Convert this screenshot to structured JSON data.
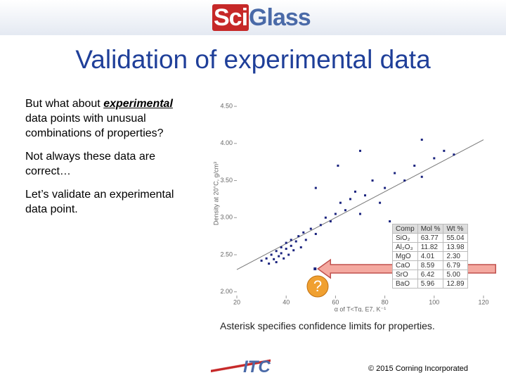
{
  "header": {
    "logo_prefix": "Sci",
    "logo_suffix": "Glass"
  },
  "title": "Validation of experimental data",
  "bullets": [
    {
      "parts": [
        "But what about ",
        "experimental",
        " data points with unusual combinations of properties?"
      ]
    },
    {
      "parts": [
        "Not always these data are correct…"
      ]
    },
    {
      "parts": [
        "Let’s validate an experimental data point."
      ]
    }
  ],
  "chart_data": {
    "type": "scatter",
    "xlabel": "α of T<Tg, E7, K⁻¹",
    "ylabel": "Density at 20°C, g/cm³",
    "xlim": [
      20,
      120
    ],
    "ylim": [
      1.95,
      4.7
    ],
    "xticks": [
      20,
      40,
      60,
      80,
      100,
      120
    ],
    "yticks": [
      {
        "value": 2,
        "label": "2.00"
      },
      {
        "value": 2.5,
        "label": "2.50"
      },
      {
        "value": 3,
        "label": "3.00"
      },
      {
        "value": 3.5,
        "label": "3.50"
      },
      {
        "value": 4,
        "label": "4.00"
      },
      {
        "value": 4.5,
        "label": "4.50"
      }
    ],
    "color": "#1a237e",
    "x": [
      30,
      32,
      33,
      34,
      35,
      36,
      36,
      37,
      38,
      38,
      39,
      40,
      40,
      41,
      42,
      42,
      43,
      44,
      45,
      46,
      47,
      48,
      50,
      52,
      54,
      56,
      58,
      60,
      62,
      64,
      66,
      68,
      70,
      72,
      75,
      78,
      80,
      84,
      88,
      92,
      95,
      100,
      104,
      108,
      52,
      61,
      70,
      82,
      95
    ],
    "y": [
      2.42,
      2.45,
      2.38,
      2.5,
      2.44,
      2.55,
      2.4,
      2.48,
      2.6,
      2.52,
      2.45,
      2.58,
      2.66,
      2.5,
      2.62,
      2.7,
      2.56,
      2.68,
      2.75,
      2.6,
      2.8,
      2.7,
      2.85,
      2.78,
      2.9,
      3.0,
      2.95,
      3.05,
      3.2,
      3.1,
      3.25,
      3.35,
      3.05,
      3.3,
      3.5,
      3.2,
      3.4,
      3.6,
      3.5,
      3.7,
      3.55,
      3.8,
      3.9,
      3.85,
      3.4,
      3.7,
      3.9,
      2.95,
      4.05
    ],
    "trend": {
      "x": [
        20,
        120
      ],
      "y": [
        2.3,
        4.05
      ]
    },
    "checked_point": {
      "x": 51.7,
      "y": 2.31
    }
  },
  "table": {
    "header": [
      "Comp",
      "Mol %",
      "Wt %"
    ],
    "rows": [
      [
        "SiO₂",
        "63.77",
        "55.04"
      ],
      [
        "Al₂O₃",
        "11.82",
        "13.98"
      ],
      [
        "MgO",
        "4.01",
        "2.30"
      ],
      [
        "CaO",
        "8.59",
        "6.79"
      ],
      [
        "SrO",
        "6.42",
        "5.00"
      ],
      [
        "BaO",
        "5.96",
        "12.89"
      ]
    ]
  },
  "caption": "Asterisk specifies confidence limits for properties.",
  "footer": {
    "logo": "ITC",
    "copyright": "© 2015 Corning Incorporated"
  }
}
